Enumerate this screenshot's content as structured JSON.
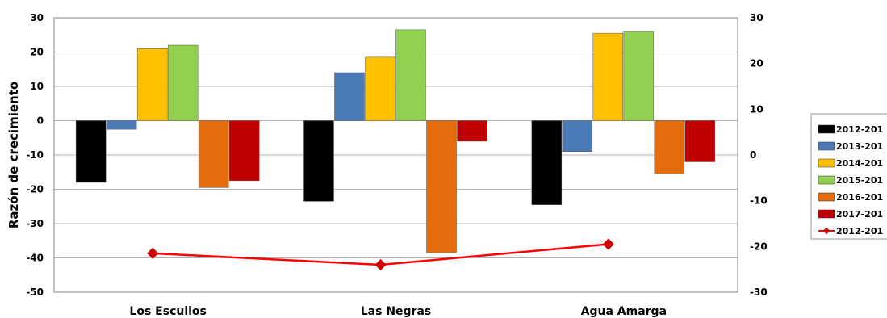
{
  "chart_data": {
    "type": "bar",
    "categories": [
      "Los Escullos",
      "Las Negras",
      "Agua Amarga"
    ],
    "ylabel": "Razón de crecimiento",
    "xlabel": "",
    "ylim": [
      -50,
      30
    ],
    "yticks": [
      30,
      20,
      10,
      0,
      -10,
      -20,
      -30,
      -40,
      -50
    ],
    "y2lim": [
      -30,
      30
    ],
    "y2ticks": [
      30,
      20,
      10,
      0,
      -10,
      -20,
      -30
    ],
    "grid": true,
    "legend_position": "right",
    "series": [
      {
        "name": "2012-201",
        "color": "#000000",
        "values": [
          -18,
          -23.5,
          -24.5
        ]
      },
      {
        "name": "2013-201",
        "color": "#4a7ab5",
        "values": [
          -2.5,
          14,
          -9
        ]
      },
      {
        "name": "2014-201",
        "color": "#ffc000",
        "values": [
          21,
          18.5,
          25.5
        ]
      },
      {
        "name": "2015-201",
        "color": "#92d050",
        "values": [
          22,
          26.5,
          26
        ]
      },
      {
        "name": "2016-201",
        "color": "#e46c0a",
        "values": [
          -19.5,
          -38.5,
          -15.5
        ]
      },
      {
        "name": "2017-201",
        "color": "#c00000",
        "values": [
          -17.5,
          -6,
          -12
        ]
      },
      {
        "name": "2012-201",
        "color": "#ff0000",
        "type": "line",
        "axis": "right",
        "values": [
          -21.5,
          -24,
          -19.5
        ]
      }
    ]
  }
}
